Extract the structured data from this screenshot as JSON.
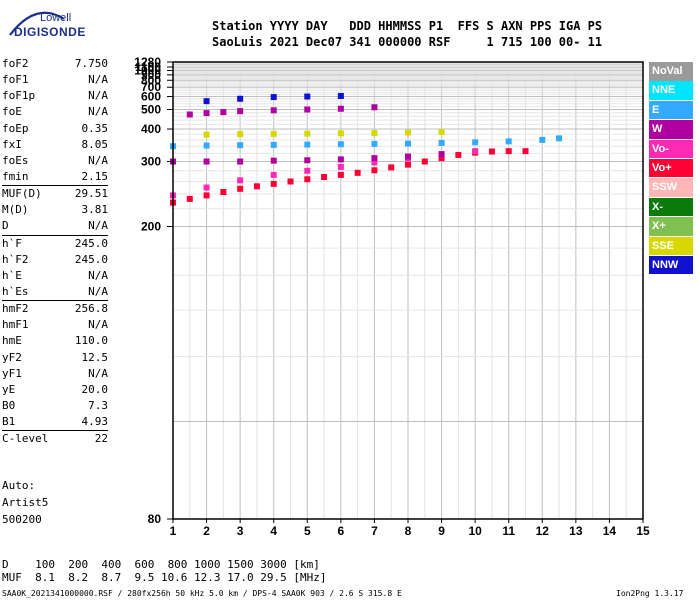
{
  "logo": {
    "line1": "Lowell",
    "line2": "DIGISONDE"
  },
  "header": {
    "line1": "Station YYYY DAY   DDD HHMMSS P1  FFS S AXN PPS IGA PS",
    "line2": "SaoLuis 2021 Dec07 341 000000 RSF     1 715 100 00- 11"
  },
  "params": [
    {
      "label": "foF2",
      "value": "7.750"
    },
    {
      "label": "foF1",
      "value": "N/A"
    },
    {
      "label": "foF1p",
      "value": "N/A"
    },
    {
      "label": "foE",
      "value": "N/A"
    },
    {
      "label": "foEp",
      "value": "0.35"
    },
    {
      "label": "fxI",
      "value": "8.05"
    },
    {
      "label": "foEs",
      "value": "N/A"
    },
    {
      "label": "fmin",
      "value": "2.15"
    },
    {
      "label": "MUF(D)",
      "value": "29.51"
    },
    {
      "label": "M(D)",
      "value": "3.81"
    },
    {
      "label": "D",
      "value": "N/A"
    },
    {
      "label": "h`F",
      "value": "245.0"
    },
    {
      "label": "h`F2",
      "value": "245.0"
    },
    {
      "label": "h`E",
      "value": "N/A"
    },
    {
      "label": "h`Es",
      "value": "N/A"
    },
    {
      "label": "hmF2",
      "value": "256.8"
    },
    {
      "label": "hmF1",
      "value": "N/A"
    },
    {
      "label": "hmE",
      "value": "110.0"
    },
    {
      "label": "yF2",
      "value": "12.5"
    },
    {
      "label": "yF1",
      "value": "N/A"
    },
    {
      "label": "yE",
      "value": "20.0"
    },
    {
      "label": "B0",
      "value": "7.3"
    },
    {
      "label": "B1",
      "value": "4.93"
    },
    {
      "label": "C-level",
      "value": "22"
    }
  ],
  "autoscale": {
    "line1": "Auto:",
    "line2": "Artist5",
    "line3": "500200"
  },
  "legend": [
    {
      "label": "NoVal",
      "bg": "#9a9a9a",
      "fg": "#ffffff"
    },
    {
      "label": "NNE",
      "bg": "#00e5ff",
      "fg": "#ffffff"
    },
    {
      "label": "E",
      "bg": "#33aaff",
      "fg": "#ffffff"
    },
    {
      "label": "W",
      "bg": "#b000a0",
      "fg": "#ffffff"
    },
    {
      "label": "Vo-",
      "bg": "#ff2ab4",
      "fg": "#ffffff"
    },
    {
      "label": "Vo+",
      "bg": "#ff0033",
      "fg": "#ffffff"
    },
    {
      "label": "SSW",
      "bg": "#ffb6b6",
      "fg": "#ffffff"
    },
    {
      "label": "X-",
      "bg": "#0a7a0a",
      "fg": "#ffffff"
    },
    {
      "label": "X+",
      "bg": "#7fc050",
      "fg": "#ffffff"
    },
    {
      "label": "SSE",
      "bg": "#d8d800",
      "fg": "#ffffff"
    },
    {
      "label": "NNW",
      "bg": "#1010d0",
      "fg": "#ffffff"
    }
  ],
  "footer": {
    "d_row": "D    100  200  400  600  800 1000 1500 3000 [km]",
    "muf_row": "MUF  8.1  8.2  8.7  9.5 10.6 12.3 17.0 29.5 [MHz]",
    "source": "SAA0K_2021341000000.RSF / 280fx256h 50 kHz 5.0 km / DPS-4 SAA0K 903 / 2.6 S 315.8 E",
    "version": "Ion2Png 1.3.17"
  },
  "chart_data": {
    "type": "scatter",
    "xlim": [
      1,
      15
    ],
    "ylim": [
      80,
      1280
    ],
    "x_ticks": [
      "1",
      "2",
      "3",
      "4",
      "5",
      "6",
      "7",
      "8",
      "9",
      "10",
      "11",
      "12",
      "13",
      "14",
      "15"
    ],
    "y_ticks": [
      {
        "value": 80,
        "label": "80"
      },
      {
        "value": 200,
        "label": "200"
      },
      {
        "value": 300,
        "label": "300"
      },
      {
        "value": 400,
        "label": "400"
      },
      {
        "value": 500,
        "label": "500"
      },
      {
        "value": 600,
        "label": "600"
      },
      {
        "value": 700,
        "label": "700"
      },
      {
        "value": 800,
        "label": "800"
      },
      {
        "value": 900,
        "label": "900"
      },
      {
        "value": 1000,
        "label": "1000"
      },
      {
        "value": 1100,
        "label": "1100"
      },
      {
        "value": 1280,
        "label": "1280"
      }
    ],
    "y_scale": "reciprocal",
    "grid": true,
    "traces": [
      {
        "name": "F-trace o-mode",
        "color": "#ff0033",
        "points": [
          [
            1.0,
            228
          ],
          [
            1.5,
            233
          ],
          [
            2.0,
            238
          ],
          [
            2.5,
            243
          ],
          [
            3.0,
            248
          ],
          [
            3.5,
            252
          ],
          [
            4.0,
            256
          ],
          [
            4.5,
            260
          ],
          [
            5.0,
            264
          ],
          [
            5.5,
            268
          ],
          [
            6.0,
            272
          ],
          [
            6.5,
            276
          ],
          [
            7.0,
            281
          ],
          [
            7.5,
            287
          ],
          [
            8.0,
            293
          ],
          [
            8.5,
            300
          ],
          [
            9.0,
            308
          ],
          [
            9.5,
            316
          ],
          [
            10.0,
            322
          ],
          [
            10.5,
            325
          ],
          [
            11.0,
            326
          ],
          [
            11.5,
            326
          ]
        ]
      },
      {
        "name": "F-trace upper",
        "color": "#ff2ab4",
        "points": [
          [
            1.0,
            238
          ],
          [
            2.0,
            250
          ],
          [
            3.0,
            262
          ],
          [
            4.0,
            272
          ],
          [
            5.0,
            280
          ],
          [
            6.0,
            288
          ],
          [
            7.0,
            298
          ],
          [
            8.0,
            308
          ],
          [
            9.0,
            318
          ],
          [
            10.0,
            326
          ]
        ]
      },
      {
        "name": "F-trace band",
        "color": "#b000a0",
        "points": [
          [
            1.0,
            300
          ],
          [
            2.0,
            300
          ],
          [
            3.0,
            300
          ],
          [
            4.0,
            302
          ],
          [
            5.0,
            303
          ],
          [
            6.0,
            305
          ],
          [
            7.0,
            308
          ],
          [
            8.0,
            312
          ],
          [
            9.0,
            318
          ]
        ]
      },
      {
        "name": "oblique 380",
        "color": "#d8d800",
        "points": [
          [
            2.0,
            378
          ],
          [
            3.0,
            380
          ],
          [
            4.0,
            381
          ],
          [
            5.0,
            382
          ],
          [
            6.0,
            383
          ],
          [
            7.0,
            384
          ],
          [
            8.0,
            386
          ],
          [
            9.0,
            388
          ]
        ]
      },
      {
        "name": "oblique 340",
        "color": "#33aaff",
        "points": [
          [
            1.0,
            340
          ],
          [
            2.0,
            342
          ],
          [
            3.0,
            343
          ],
          [
            4.0,
            344
          ],
          [
            5.0,
            345
          ],
          [
            6.0,
            346
          ],
          [
            7.0,
            347
          ],
          [
            8.0,
            348
          ],
          [
            9.0,
            350
          ],
          [
            10.0,
            352
          ],
          [
            11.0,
            355
          ],
          [
            12.0,
            360
          ],
          [
            12.5,
            365
          ]
        ]
      },
      {
        "name": "multihop 480",
        "color": "#b000a0",
        "points": [
          [
            1.5,
            470
          ],
          [
            2.0,
            478
          ],
          [
            2.5,
            484
          ],
          [
            3.0,
            490
          ],
          [
            4.0,
            495
          ],
          [
            5.0,
            500
          ],
          [
            6.0,
            505
          ],
          [
            7.0,
            515
          ]
        ]
      },
      {
        "name": "multihop 600",
        "color": "#1010d0",
        "points": [
          [
            2.0,
            560
          ],
          [
            3.0,
            580
          ],
          [
            4.0,
            595
          ],
          [
            5.0,
            600
          ],
          [
            6.0,
            605
          ]
        ]
      }
    ]
  }
}
